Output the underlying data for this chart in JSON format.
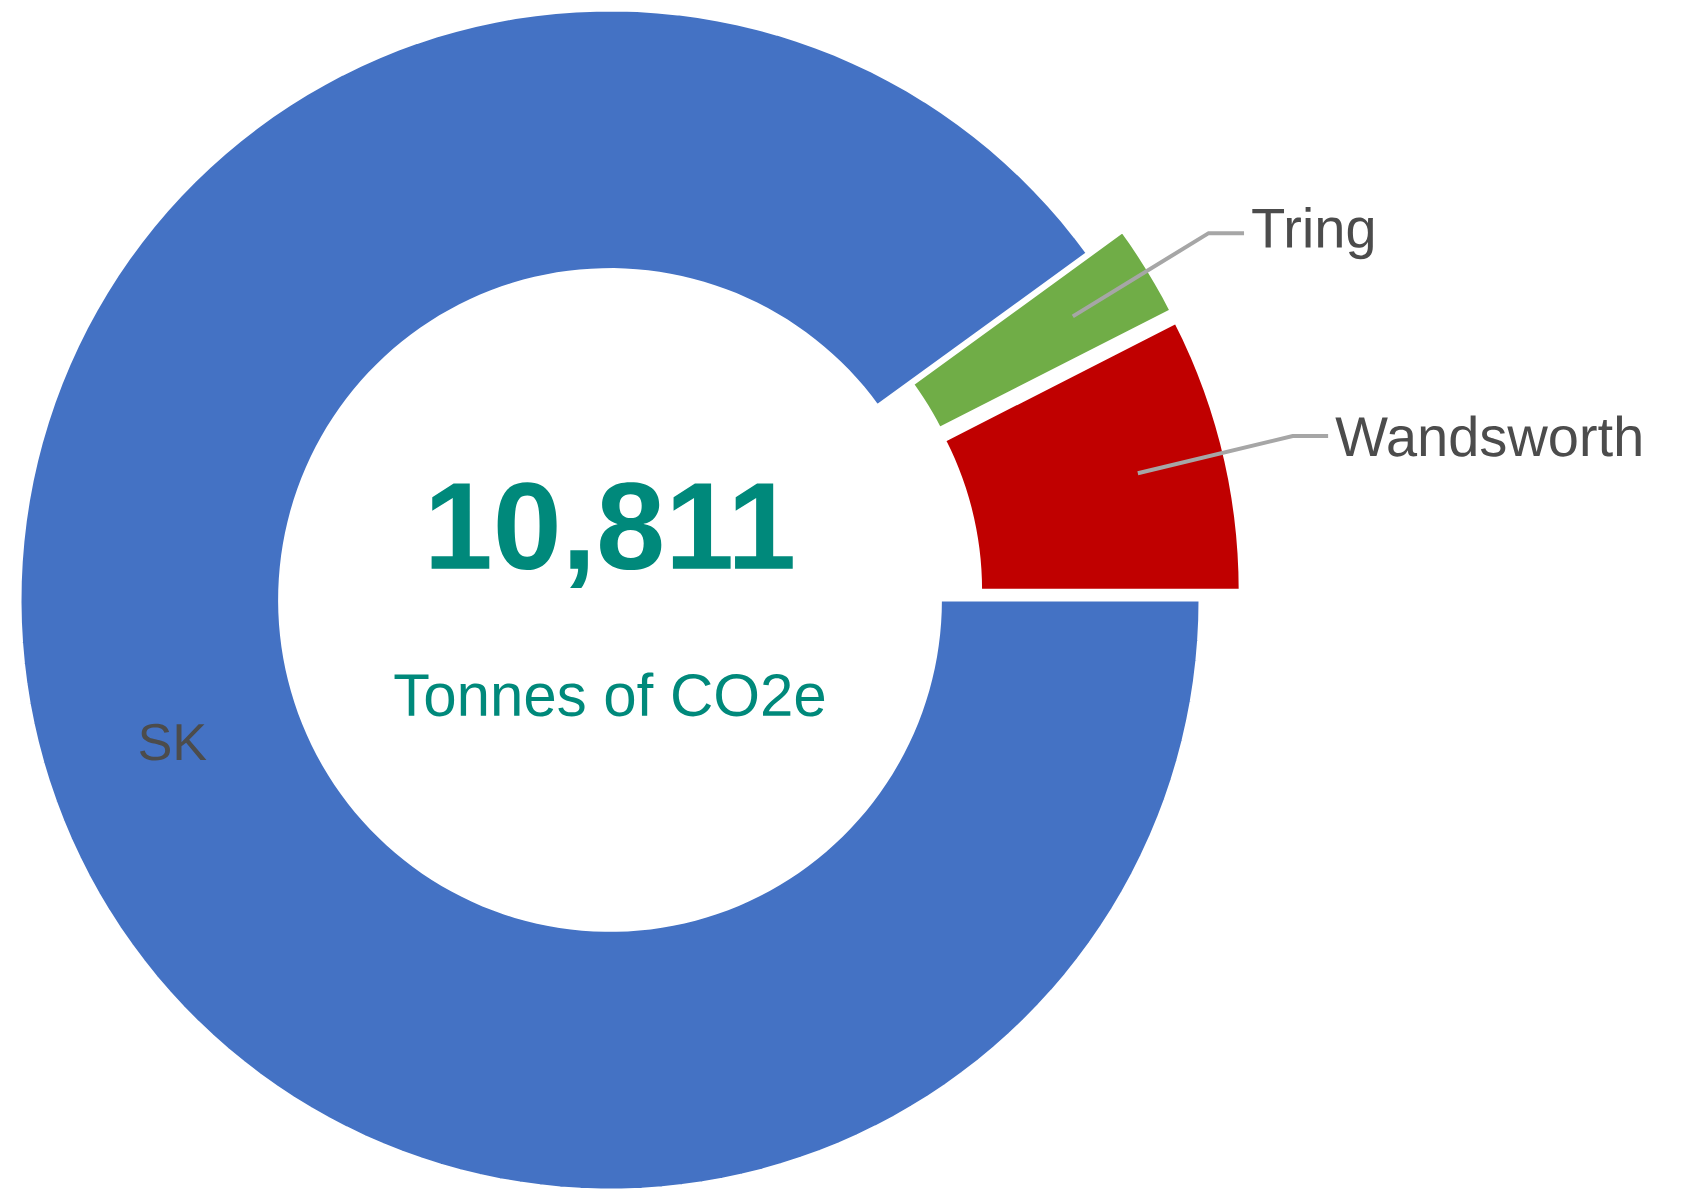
{
  "chart_data": {
    "type": "donut",
    "categories": [
      "SK",
      "Tring",
      "Wandsworth"
    ],
    "values": [
      90,
      2.5,
      7.5
    ],
    "colors": [
      "#4472c4",
      "#70ad47",
      "#c00000"
    ],
    "annotations": [
      "10,811",
      "Tonnes of CO2e"
    ]
  }
}
